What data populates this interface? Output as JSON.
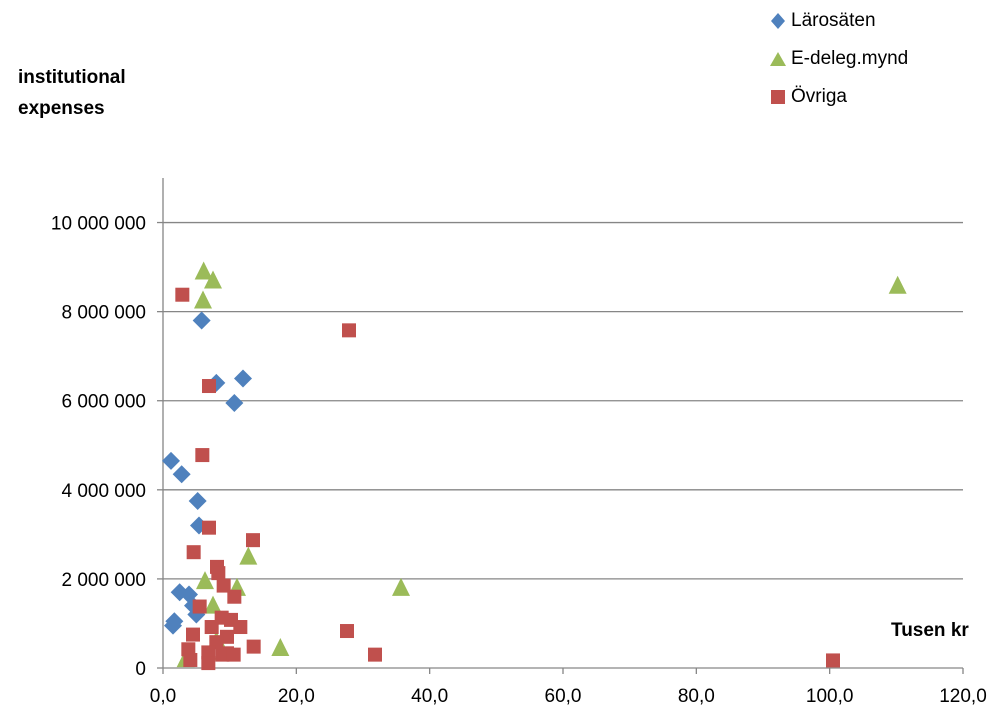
{
  "chart_data": {
    "type": "scatter",
    "title": "",
    "xlabel": "Tusen kr",
    "ylabel": "institutional expenses",
    "xlim": [
      0,
      120
    ],
    "ylim": [
      0,
      11000000
    ],
    "x_ticks": [
      "0,0",
      "20,0",
      "40,0",
      "60,0",
      "80,0",
      "100,0",
      "120,0"
    ],
    "x_tick_values": [
      0,
      20,
      40,
      60,
      80,
      100,
      120
    ],
    "y_ticks": [
      "0",
      "2 000 000",
      "4 000 000",
      "6 000 000",
      "8 000 000",
      "10 000 000"
    ],
    "y_tick_values": [
      0,
      2000000,
      4000000,
      6000000,
      8000000,
      10000000
    ],
    "grid": "horizontal",
    "legend_position": "top-right",
    "series": [
      {
        "name": "Lärosäten",
        "marker": "diamond",
        "color": "#4F81BD",
        "points": [
          [
            1.2,
            4650000
          ],
          [
            2.8,
            4350000
          ],
          [
            5.8,
            7800000
          ],
          [
            8.0,
            6400000
          ],
          [
            12.0,
            6500000
          ],
          [
            10.7,
            5950000
          ],
          [
            5.2,
            3750000
          ],
          [
            5.4,
            3200000
          ],
          [
            2.5,
            1700000
          ],
          [
            3.9,
            1650000
          ],
          [
            4.5,
            1400000
          ],
          [
            5.0,
            1200000
          ],
          [
            1.7,
            1050000
          ],
          [
            1.5,
            950000
          ]
        ]
      },
      {
        "name": "E-deleg.mynd",
        "marker": "triangle",
        "color": "#9BBB59",
        "points": [
          [
            6.1,
            8900000
          ],
          [
            7.5,
            8700000
          ],
          [
            6.0,
            8250000
          ],
          [
            110.2,
            8580000
          ],
          [
            12.8,
            2500000
          ],
          [
            6.3,
            1950000
          ],
          [
            11.1,
            1800000
          ],
          [
            35.7,
            1800000
          ],
          [
            7.5,
            1400000
          ],
          [
            17.6,
            450000
          ],
          [
            8.0,
            600000
          ],
          [
            3.4,
            200000
          ],
          [
            9.0,
            350000
          ]
        ]
      },
      {
        "name": "Övriga",
        "marker": "square",
        "color": "#C0504D",
        "points": [
          [
            2.9,
            8380000
          ],
          [
            27.9,
            7580000
          ],
          [
            6.9,
            6330000
          ],
          [
            5.9,
            4780000
          ],
          [
            6.9,
            3150000
          ],
          [
            13.5,
            2870000
          ],
          [
            4.6,
            2600000
          ],
          [
            8.1,
            2270000
          ],
          [
            8.3,
            2130000
          ],
          [
            9.1,
            1850000
          ],
          [
            10.7,
            1600000
          ],
          [
            5.5,
            1380000
          ],
          [
            8.8,
            1130000
          ],
          [
            10.2,
            1080000
          ],
          [
            7.3,
            920000
          ],
          [
            11.6,
            920000
          ],
          [
            4.5,
            750000
          ],
          [
            9.6,
            700000
          ],
          [
            27.6,
            830000
          ],
          [
            8.0,
            580000
          ],
          [
            13.6,
            480000
          ],
          [
            3.8,
            420000
          ],
          [
            6.8,
            350000
          ],
          [
            8.9,
            300000
          ],
          [
            9.6,
            330000
          ],
          [
            10.6,
            300000
          ],
          [
            31.8,
            300000
          ],
          [
            4.1,
            180000
          ],
          [
            6.8,
            110000
          ],
          [
            100.5,
            170000
          ]
        ]
      }
    ]
  }
}
